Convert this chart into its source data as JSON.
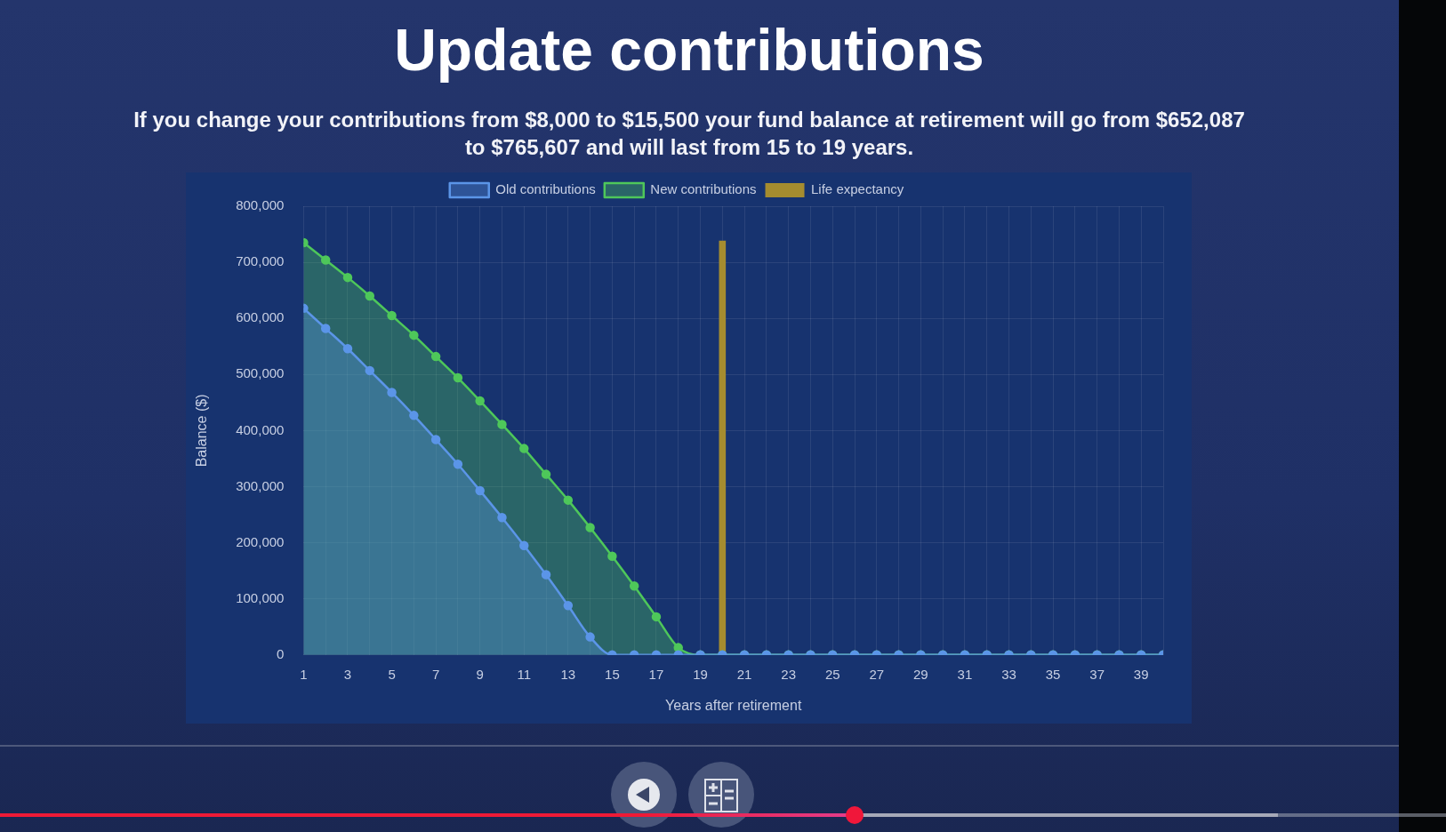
{
  "chart_data": {
    "type": "area",
    "title": "Update contributions",
    "subtitle": "If you change your contributions from $8,000 to $15,500 your fund balance at retirement will go from $652,087 to $765,607 and will last from 15 to 19 years.",
    "xlabel": "Years after retirement",
    "ylabel": "Balance ($)",
    "x": [
      1,
      2,
      3,
      4,
      5,
      6,
      7,
      8,
      9,
      10,
      11,
      12,
      13,
      14,
      15,
      16,
      17,
      18,
      19,
      20,
      21,
      22,
      23,
      24,
      25,
      26,
      27,
      28,
      29,
      30,
      31,
      32,
      33,
      34,
      35,
      36,
      37,
      38,
      39,
      40
    ],
    "series": [
      {
        "name": "Old contributions",
        "color": "#5b95e8",
        "values": [
          618000,
          582000,
          546000,
          507000,
          468000,
          427000,
          384000,
          340000,
          293000,
          245000,
          195000,
          143000,
          88000,
          32000,
          0,
          0,
          0,
          0,
          0,
          0,
          0,
          0,
          0,
          0,
          0,
          0,
          0,
          0,
          0,
          0,
          0,
          0,
          0,
          0,
          0,
          0,
          0,
          0,
          0,
          0
        ]
      },
      {
        "name": "New contributions",
        "color": "#4ec75a",
        "values": [
          735000,
          704000,
          673000,
          640000,
          605000,
          570000,
          532000,
          494000,
          453000,
          411000,
          368000,
          322000,
          276000,
          227000,
          176000,
          123000,
          68000,
          13000,
          0,
          0,
          0,
          0,
          0,
          0,
          0,
          0,
          0,
          0,
          0,
          0,
          0,
          0,
          0,
          0,
          0,
          0,
          0,
          0,
          0,
          0
        ]
      },
      {
        "name": "Life expectancy",
        "type": "bar",
        "color": "#a58c2f",
        "values": [
          null,
          null,
          null,
          null,
          null,
          null,
          null,
          null,
          null,
          null,
          null,
          null,
          null,
          null,
          null,
          null,
          null,
          null,
          null,
          738000,
          null,
          null,
          null,
          null,
          null,
          null,
          null,
          null,
          null,
          null,
          null,
          null,
          null,
          null,
          null,
          null,
          null,
          null,
          null,
          null
        ]
      }
    ],
    "xlim": [
      1,
      40
    ],
    "xticks": [
      1,
      {
        "value": 2,
        "label": null
      },
      3,
      {
        "value": 4,
        "label": null
      },
      5,
      {
        "value": 6,
        "label": null
      },
      7,
      {
        "value": 8,
        "label": null
      },
      9,
      {
        "value": 10,
        "label": null
      },
      11,
      {
        "value": 12,
        "label": null
      },
      13,
      {
        "value": 14,
        "label": null
      },
      15,
      {
        "value": 16,
        "label": null
      },
      17,
      {
        "value": 18,
        "label": null
      },
      19,
      {
        "value": 20,
        "label": null
      },
      21,
      {
        "value": 22,
        "label": null
      },
      23,
      {
        "value": 24,
        "label": null
      },
      25,
      {
        "value": 26,
        "label": null
      },
      27,
      {
        "value": 28,
        "label": null
      },
      29,
      {
        "value": 30,
        "label": null
      },
      31,
      {
        "value": 32,
        "label": null
      },
      33,
      {
        "value": 34,
        "label": null
      },
      35,
      {
        "value": 36,
        "label": null
      },
      37,
      {
        "value": 38,
        "label": null
      },
      39,
      {
        "value": 40,
        "label": null
      }
    ],
    "ylim": [
      0,
      800000
    ],
    "yticks": [
      {
        "value": 0,
        "label": "0"
      },
      {
        "value": 100000,
        "label": "100,000"
      },
      {
        "value": 200000,
        "label": "200,000"
      },
      {
        "value": 300000,
        "label": "300,000"
      },
      {
        "value": 400000,
        "label": "400,000"
      },
      {
        "value": 500000,
        "label": "500,000"
      },
      {
        "value": 600000,
        "label": "600,000"
      },
      {
        "value": 700000,
        "label": "700,000"
      },
      {
        "value": 800000,
        "label": "800,000"
      }
    ],
    "grid": true,
    "legend": "top",
    "marker": "circle"
  }
}
